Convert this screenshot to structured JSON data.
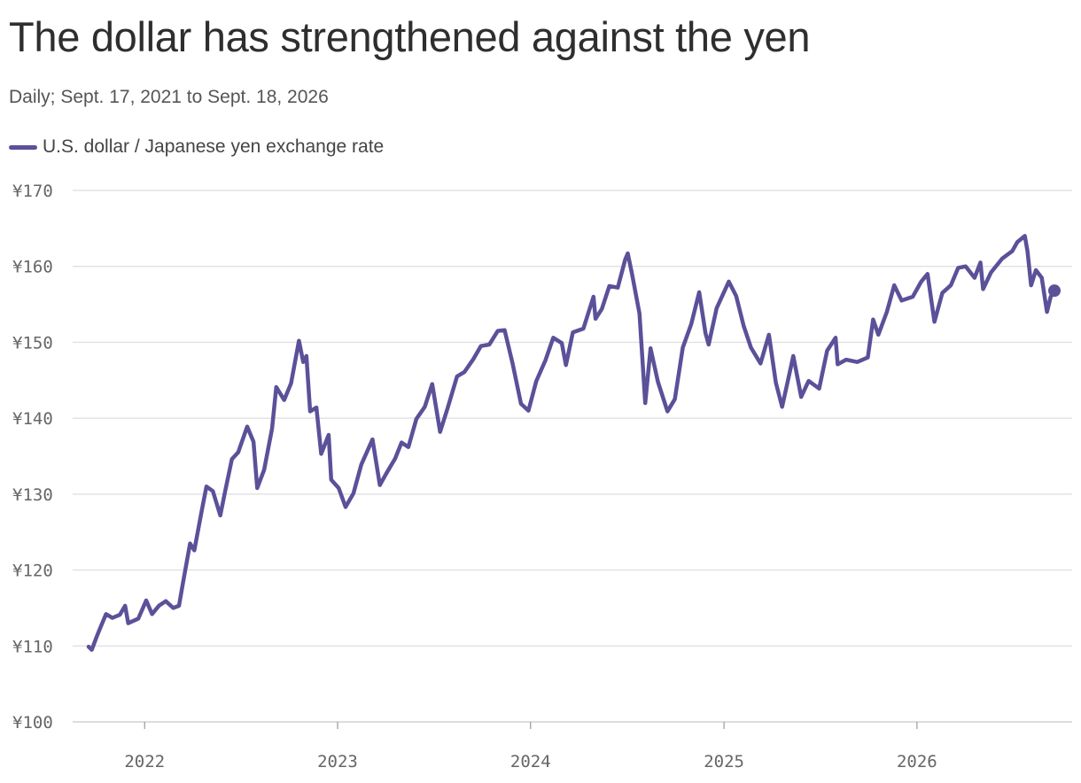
{
  "header": {
    "title": "The dollar has strengthened against the yen",
    "subtitle": "Daily; Sept. 17, 2021 to Sept. 18, 2026"
  },
  "colors": {
    "series": "#5a5199",
    "grid": "#dddddd",
    "axis": "#999999"
  },
  "chart_data": {
    "type": "line",
    "title": "The dollar has strengthened against the yen",
    "subtitle": "Daily; Sept. 17, 2021 to Sept. 18, 2026",
    "xlabel": "",
    "ylabel": "",
    "ylim": [
      100,
      170
    ],
    "xlim": [
      "2021-09-17",
      "2026-09-18"
    ],
    "y_ticks": [
      100,
      110,
      120,
      130,
      140,
      150,
      160,
      170
    ],
    "y_tick_labels": [
      "¥100",
      "¥110",
      "¥120",
      "¥130",
      "¥140",
      "¥150",
      "¥160",
      "¥170"
    ],
    "x_ticks": [
      "2022-01-01",
      "2023-01-01",
      "2024-01-01",
      "2025-01-01",
      "2026-01-01"
    ],
    "x_tick_labels": [
      "2022",
      "2023",
      "2024",
      "2025",
      "2026"
    ],
    "grid": "horizontal",
    "legend_position": "top-left",
    "series": [
      {
        "name": "U.S. dollar / Japanese yen exchange rate",
        "color": "#5a5199",
        "end_marker": true,
        "points": [
          [
            "2021-09-17",
            109.9
          ],
          [
            "2021-09-23",
            109.5
          ],
          [
            "2021-10-01",
            111.0
          ],
          [
            "2021-10-08",
            112.2
          ],
          [
            "2021-10-20",
            114.2
          ],
          [
            "2021-11-01",
            113.7
          ],
          [
            "2021-11-15",
            114.1
          ],
          [
            "2021-11-25",
            115.3
          ],
          [
            "2021-12-01",
            113.0
          ],
          [
            "2021-12-20",
            113.6
          ],
          [
            "2022-01-04",
            116.0
          ],
          [
            "2022-01-15",
            114.2
          ],
          [
            "2022-01-28",
            115.3
          ],
          [
            "2022-02-10",
            115.9
          ],
          [
            "2022-02-24",
            115.0
          ],
          [
            "2022-03-07",
            115.3
          ],
          [
            "2022-03-15",
            118.5
          ],
          [
            "2022-03-28",
            123.5
          ],
          [
            "2022-04-05",
            122.6
          ],
          [
            "2022-04-20",
            128.2
          ],
          [
            "2022-04-28",
            131.0
          ],
          [
            "2022-05-10",
            130.4
          ],
          [
            "2022-05-24",
            127.2
          ],
          [
            "2022-06-03",
            130.6
          ],
          [
            "2022-06-15",
            134.6
          ],
          [
            "2022-06-27",
            135.5
          ],
          [
            "2022-07-14",
            138.9
          ],
          [
            "2022-07-26",
            136.9
          ],
          [
            "2022-08-02",
            130.8
          ],
          [
            "2022-08-15",
            133.2
          ],
          [
            "2022-08-30",
            138.6
          ],
          [
            "2022-09-07",
            144.1
          ],
          [
            "2022-09-22",
            142.4
          ],
          [
            "2022-10-05",
            144.6
          ],
          [
            "2022-10-20",
            150.2
          ],
          [
            "2022-10-28",
            147.4
          ],
          [
            "2022-11-03",
            148.2
          ],
          [
            "2022-11-10",
            140.9
          ],
          [
            "2022-11-22",
            141.4
          ],
          [
            "2022-12-01",
            135.3
          ],
          [
            "2022-12-15",
            137.8
          ],
          [
            "2022-12-20",
            131.9
          ],
          [
            "2023-01-03",
            130.8
          ],
          [
            "2023-01-16",
            128.3
          ],
          [
            "2023-01-31",
            130.1
          ],
          [
            "2023-02-15",
            133.9
          ],
          [
            "2023-03-08",
            137.2
          ],
          [
            "2023-03-22",
            131.2
          ],
          [
            "2023-04-03",
            132.7
          ],
          [
            "2023-04-20",
            134.7
          ],
          [
            "2023-05-02",
            136.8
          ],
          [
            "2023-05-15",
            136.2
          ],
          [
            "2023-05-30",
            139.9
          ],
          [
            "2023-06-15",
            141.5
          ],
          [
            "2023-06-29",
            144.5
          ],
          [
            "2023-07-14",
            138.2
          ],
          [
            "2023-07-28",
            141.3
          ],
          [
            "2023-08-15",
            145.5
          ],
          [
            "2023-08-29",
            146.1
          ],
          [
            "2023-09-15",
            147.8
          ],
          [
            "2023-09-29",
            149.5
          ],
          [
            "2023-10-15",
            149.7
          ],
          [
            "2023-10-31",
            151.5
          ],
          [
            "2023-11-13",
            151.6
          ],
          [
            "2023-11-28",
            147.2
          ],
          [
            "2023-12-14",
            141.9
          ],
          [
            "2023-12-28",
            141.0
          ],
          [
            "2024-01-12",
            144.9
          ],
          [
            "2024-01-29",
            147.6
          ],
          [
            "2024-02-13",
            150.6
          ],
          [
            "2024-02-29",
            149.9
          ],
          [
            "2024-03-08",
            147.0
          ],
          [
            "2024-03-21",
            151.3
          ],
          [
            "2024-04-10",
            151.8
          ],
          [
            "2024-04-29",
            156.0
          ],
          [
            "2024-05-03",
            153.1
          ],
          [
            "2024-05-15",
            154.4
          ],
          [
            "2024-05-29",
            157.4
          ],
          [
            "2024-06-14",
            157.2
          ],
          [
            "2024-06-28",
            160.9
          ],
          [
            "2024-07-03",
            161.7
          ],
          [
            "2024-07-11",
            159.0
          ],
          [
            "2024-07-25",
            153.8
          ],
          [
            "2024-08-05",
            142.0
          ],
          [
            "2024-08-15",
            149.2
          ],
          [
            "2024-08-29",
            144.8
          ],
          [
            "2024-09-16",
            140.9
          ],
          [
            "2024-09-30",
            142.5
          ],
          [
            "2024-10-15",
            149.3
          ],
          [
            "2024-10-31",
            152.4
          ],
          [
            "2024-11-15",
            156.6
          ],
          [
            "2024-11-27",
            151.2
          ],
          [
            "2024-12-03",
            149.7
          ],
          [
            "2024-12-18",
            154.5
          ],
          [
            "2025-01-10",
            158.0
          ],
          [
            "2025-01-24",
            156.1
          ],
          [
            "2025-02-07",
            152.2
          ],
          [
            "2025-02-21",
            149.3
          ],
          [
            "2025-03-11",
            147.2
          ],
          [
            "2025-03-27",
            151.0
          ],
          [
            "2025-04-09",
            144.7
          ],
          [
            "2025-04-21",
            141.5
          ],
          [
            "2025-05-02",
            145.0
          ],
          [
            "2025-05-12",
            148.2
          ],
          [
            "2025-05-27",
            142.8
          ],
          [
            "2025-06-10",
            144.9
          ],
          [
            "2025-06-30",
            143.9
          ],
          [
            "2025-07-15",
            148.9
          ],
          [
            "2025-07-31",
            150.6
          ],
          [
            "2025-08-04",
            147.1
          ],
          [
            "2025-08-20",
            147.7
          ],
          [
            "2025-09-10",
            147.4
          ],
          [
            "2025-09-30",
            148.0
          ],
          [
            "2025-10-10",
            153.0
          ],
          [
            "2025-10-20",
            151.0
          ],
          [
            "2025-11-05",
            154.0
          ],
          [
            "2025-11-19",
            157.5
          ],
          [
            "2025-12-03",
            155.5
          ],
          [
            "2025-12-24",
            156.0
          ],
          [
            "2026-01-09",
            158.0
          ],
          [
            "2026-01-21",
            159.0
          ],
          [
            "2026-02-03",
            152.7
          ],
          [
            "2026-02-18",
            156.5
          ],
          [
            "2026-03-06",
            157.5
          ],
          [
            "2026-03-20",
            159.8
          ],
          [
            "2026-04-03",
            160.0
          ],
          [
            "2026-04-20",
            158.5
          ],
          [
            "2026-05-01",
            160.5
          ],
          [
            "2026-05-06",
            157.0
          ],
          [
            "2026-05-21",
            159.2
          ],
          [
            "2026-06-11",
            161.0
          ],
          [
            "2026-06-30",
            162.0
          ],
          [
            "2026-07-10",
            163.2
          ],
          [
            "2026-07-24",
            164.0
          ],
          [
            "2026-07-29",
            162.0
          ],
          [
            "2026-08-05",
            157.5
          ],
          [
            "2026-08-14",
            159.5
          ],
          [
            "2026-08-25",
            158.5
          ],
          [
            "2026-09-04",
            154.0
          ],
          [
            "2026-09-11",
            156.0
          ],
          [
            "2026-09-18",
            156.8
          ]
        ]
      }
    ]
  }
}
